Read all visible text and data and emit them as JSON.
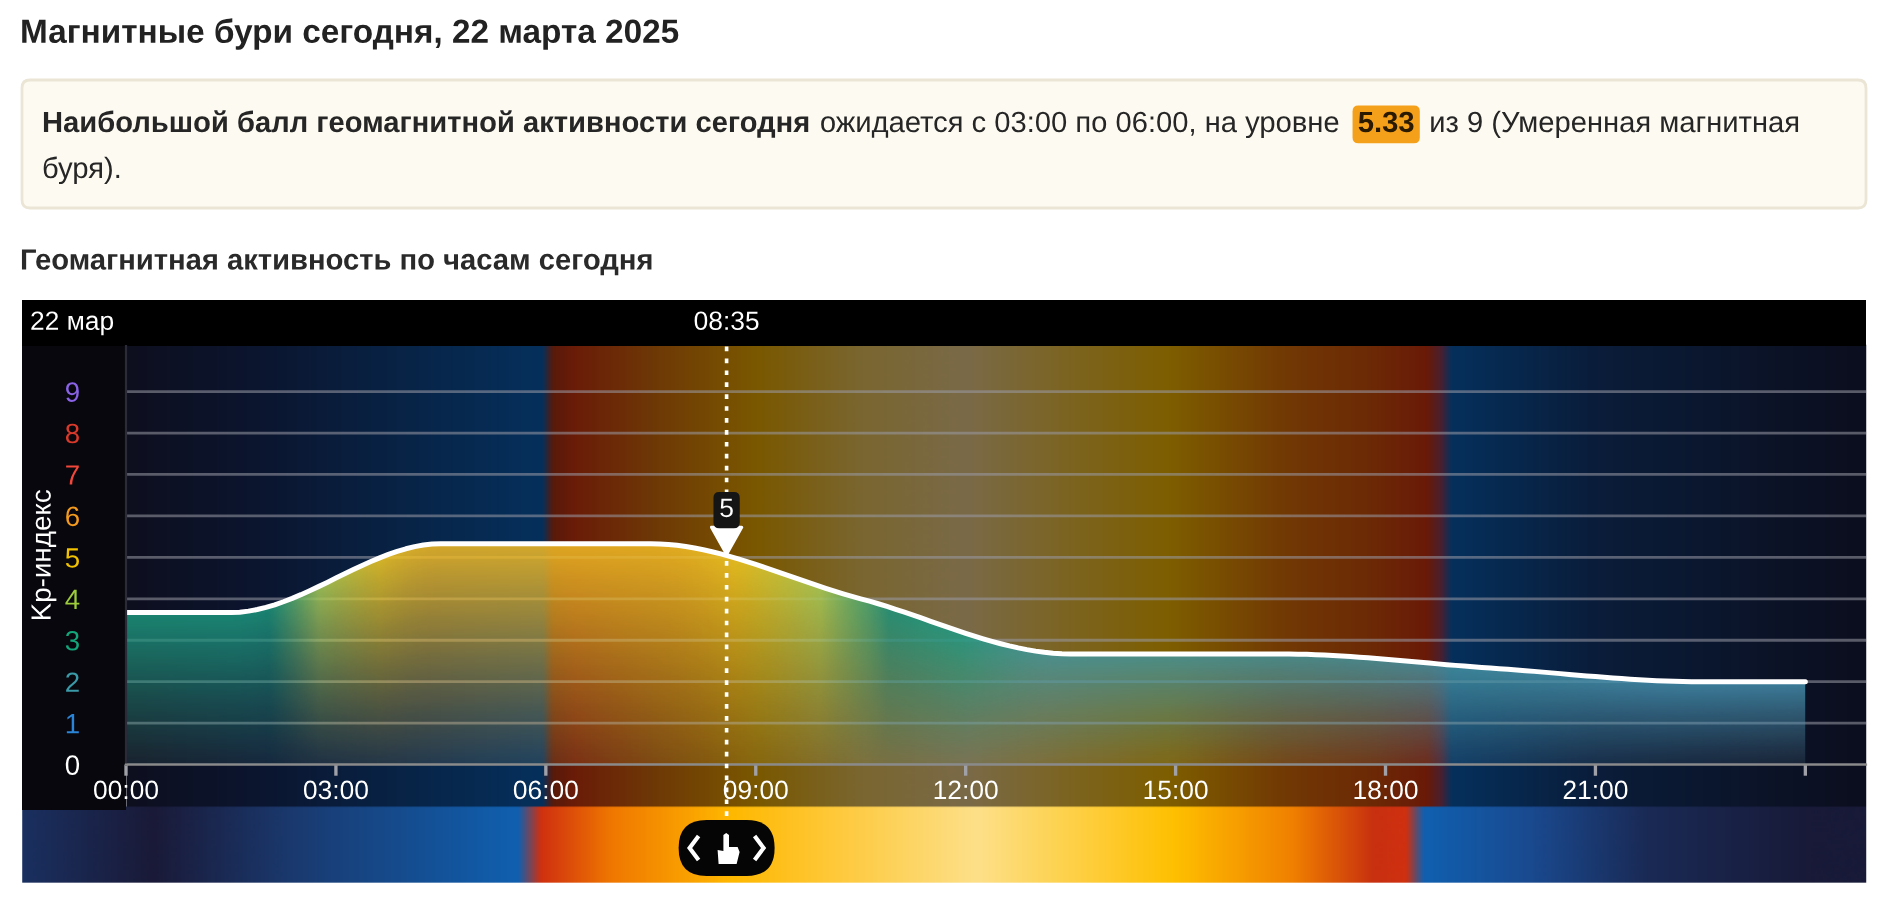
{
  "chart_data": {
    "type": "area",
    "title": "Магнитные бури сегодня, 22 марта 2025",
    "subtitle": "Геомагнитная активность по часам сегодня",
    "ylabel": "Kp-индекс",
    "annotations": [
      "Наибольшой балл геомагнитной активности сегодня",
      "ожидается с 03:00 по 06:00, на уровне",
      "5.33",
      "из 9 (Умеренная магнитная",
      "буря).",
      "22 мар",
      {
        "text": "5",
        "x": "2025-03-22T08:35",
        "y": 5
      }
    ],
    "x": [
      "2025-03-22T00:00",
      "2025-03-22T01:30",
      "2025-03-22T04:30",
      "2025-03-22T07:30",
      "2025-03-22T10:30",
      "2025-03-22T13:30",
      "2025-03-22T16:30",
      "2025-03-22T19:30",
      "2025-03-22T22:30",
      "2025-03-23T00:00"
    ],
    "series": [
      {
        "color": "#ffffff",
        "values": [
          3.67,
          3.67,
          5.33,
          5.33,
          4.0,
          2.67,
          2.67,
          2.33,
          2.0,
          2.0
        ]
      }
    ],
    "xlim": [
      "2025-03-22T00:00",
      "2025-03-23T00:52"
    ],
    "xticks": [
      {
        "value": "2025-03-22T00:00",
        "label": "00:00"
      },
      {
        "value": "2025-03-22T03:00",
        "label": "03:00"
      },
      {
        "value": "2025-03-22T06:00",
        "label": "06:00"
      },
      {
        "value": "2025-03-22T09:00",
        "label": "09:00"
      },
      {
        "value": "2025-03-22T12:00",
        "label": "12:00"
      },
      {
        "value": "2025-03-22T15:00",
        "label": "15:00"
      },
      {
        "value": "2025-03-22T18:00",
        "label": "18:00"
      },
      {
        "value": "2025-03-22T21:00",
        "label": "21:00"
      },
      {
        "value": "2025-03-23T00:00",
        "label": null
      }
    ],
    "ylim": [
      0,
      10.1
    ],
    "yticks": [
      0,
      1,
      2,
      3,
      4,
      5,
      6,
      7,
      8,
      9
    ],
    "ref_lines": [
      {
        "axis": "x",
        "value": "2025-03-22T08:35",
        "label": "08:35",
        "color": "#ffffff",
        "line_style": "dotted"
      }
    ],
    "grid": "y"
  }
}
